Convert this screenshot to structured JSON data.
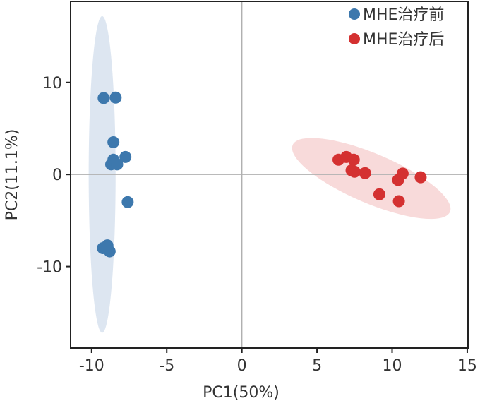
{
  "chart_data": {
    "type": "scatter",
    "title": "",
    "xlabel": "PC1(50%)",
    "ylabel": "PC2(11.1%)",
    "xlim": [
      -11.4,
      15.05
    ],
    "ylim": [
      -18.85,
      18.8
    ],
    "xticks": [
      -10,
      -5,
      0,
      5,
      10,
      15
    ],
    "xtick_labels": [
      "-10",
      "-5",
      "0",
      "5",
      "10",
      "15"
    ],
    "yticks": [
      -10,
      0,
      10
    ],
    "ytick_labels": [
      "-10",
      "0",
      "10"
    ],
    "grid": false,
    "zero_lines": true,
    "legend_position": "top-right",
    "series": [
      {
        "name": "MHE治疗前",
        "color": "#3d78ad",
        "ellipse_color": "#dde6f1",
        "ellipse": {
          "center": [
            -9.3,
            0
          ],
          "axis_end_a": [
            -9.3,
            17.2
          ],
          "axis_end_b": [
            -9.3,
            -17.2
          ],
          "axis_ratio": 0.085
        },
        "points": [
          [
            -9.2,
            8.3
          ],
          [
            -8.4,
            8.35
          ],
          [
            -8.55,
            3.5
          ],
          [
            -8.55,
            1.6
          ],
          [
            -7.75,
            1.9
          ],
          [
            -8.7,
            1.1
          ],
          [
            -8.3,
            1.1
          ],
          [
            -7.6,
            -3.0
          ],
          [
            -9.25,
            -8.0
          ],
          [
            -8.95,
            -7.7
          ],
          [
            -8.8,
            -8.35
          ]
        ]
      },
      {
        "name": "MHE治疗后",
        "color": "#d43131",
        "ellipse_color": "#f8dada",
        "ellipse": {
          "center": [
            8.6,
            0.1
          ],
          "axis_end_a": [
            3.38,
            3.2
          ],
          "axis_end_b": [
            13.85,
            -4.06
          ],
          "axis_ratio": 0.29
        },
        "points": [
          [
            6.43,
            1.6
          ],
          [
            6.95,
            1.9
          ],
          [
            7.45,
            1.6
          ],
          [
            7.3,
            0.45
          ],
          [
            7.5,
            0.3
          ],
          [
            8.2,
            0.15
          ],
          [
            9.15,
            -2.15
          ],
          [
            10.4,
            -0.6
          ],
          [
            10.7,
            0.1
          ],
          [
            11.9,
            -0.3
          ],
          [
            10.45,
            -2.9
          ]
        ]
      }
    ]
  }
}
